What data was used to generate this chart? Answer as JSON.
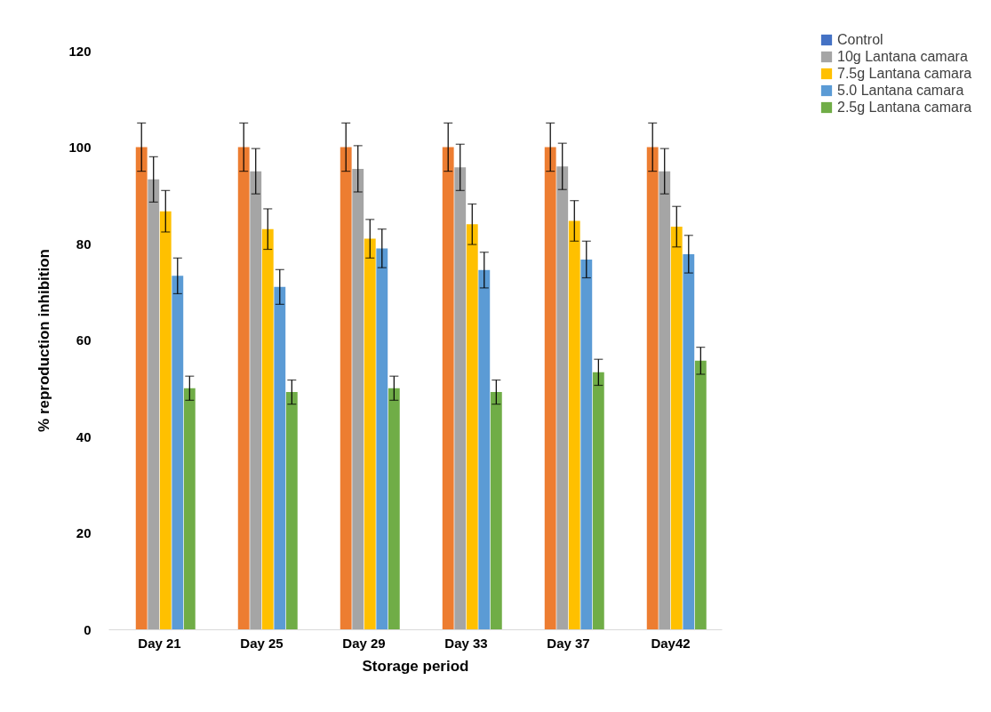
{
  "chart_data": {
    "type": "bar",
    "xlabel": "Storage period",
    "ylabel": "% reproduction inhibition",
    "categories": [
      "Day 21",
      "Day 25",
      "Day 29",
      "Day 33",
      "Day 37",
      "Day42"
    ],
    "series": [
      {
        "name": "Control",
        "color": "#4472c4",
        "values": [
          0,
          0,
          0,
          0,
          0,
          0
        ]
      },
      {
        "color": "#ed7d31",
        "values": [
          100,
          100,
          100,
          100,
          100,
          100
        ],
        "errors": [
          5,
          5,
          5,
          5,
          5,
          5
        ]
      },
      {
        "name": "10g Lantana camara",
        "color": "#a5a5a5",
        "values": [
          93.3,
          95,
          95.5,
          95.8,
          96,
          95
        ],
        "errors": [
          4.7,
          4.7,
          4.8,
          4.8,
          4.8,
          4.7
        ]
      },
      {
        "name": "7.5g Lantana camara",
        "color": "#ffc000",
        "values": [
          86.7,
          83,
          81,
          84,
          84.7,
          83.5
        ],
        "errors": [
          4.3,
          4.2,
          4,
          4.2,
          4.2,
          4.2
        ]
      },
      {
        "name": "5.0 Lantana camara",
        "color": "#5b9bd5",
        "values": [
          73.3,
          71,
          79,
          74.5,
          76.7,
          77.8
        ],
        "errors": [
          3.7,
          3.6,
          4,
          3.7,
          3.8,
          3.9
        ]
      },
      {
        "name": "2.5g Lantana camara",
        "color": "#70ad47",
        "values": [
          50,
          49.2,
          50,
          49.2,
          53.3,
          55.7
        ],
        "errors": [
          2.5,
          2.5,
          2.5,
          2.5,
          2.7,
          2.8
        ]
      }
    ],
    "ylim": [
      0,
      120
    ],
    "yticks": [
      0,
      20,
      40,
      60,
      80,
      100,
      120
    ],
    "grid": false,
    "legend": "top right"
  }
}
